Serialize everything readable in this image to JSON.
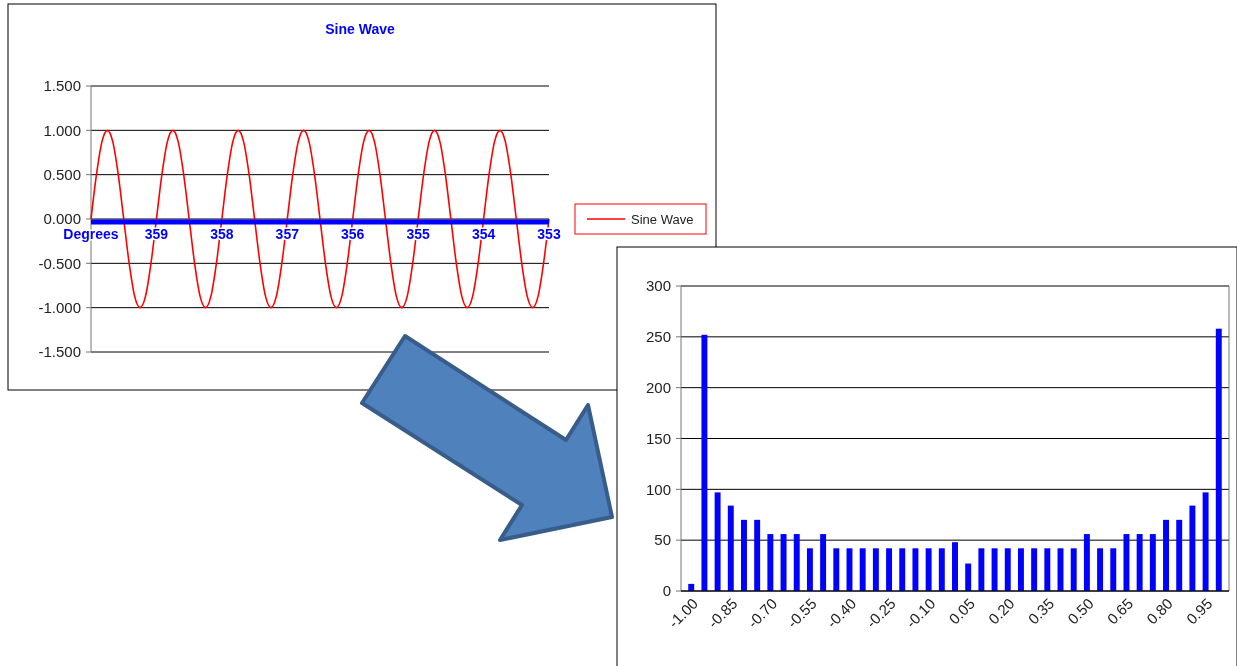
{
  "chart_data": [
    {
      "type": "line",
      "title": "Sine Wave",
      "categories": [
        "Degrees",
        null,
        null,
        null,
        null,
        null,
        null,
        null,
        null,
        null,
        null,
        null,
        "359",
        null,
        null,
        null,
        null,
        null,
        null,
        null,
        null,
        null,
        null,
        null,
        "358",
        null,
        null,
        null,
        null,
        null,
        null,
        null,
        null,
        null,
        null,
        null,
        "357",
        null,
        null,
        null,
        null,
        null,
        null,
        null,
        null,
        null,
        null,
        null,
        "356",
        null,
        null,
        null,
        null,
        null,
        null,
        null,
        null,
        null,
        null,
        null,
        "355",
        null,
        null,
        null,
        null,
        null,
        null,
        null,
        null,
        null,
        null,
        null,
        "354",
        null,
        null,
        null,
        null,
        null,
        null,
        null,
        null,
        null,
        null,
        null,
        "353"
      ],
      "series": [
        {
          "name": "Sine Wave",
          "color": "#ff0000",
          "values": [
            0,
            0.5,
            0.87,
            1,
            0.87,
            0.5,
            0,
            -0.5,
            -0.87,
            -1,
            -0.87,
            -0.5,
            0,
            0.5,
            0.87,
            1,
            0.87,
            0.5,
            0,
            -0.5,
            -0.87,
            -1,
            -0.87,
            -0.5,
            0,
            0.5,
            0.87,
            1,
            0.87,
            0.5,
            0,
            -0.5,
            -0.87,
            -1,
            -0.87,
            -0.5,
            0,
            0.5,
            0.87,
            1,
            0.87,
            0.5,
            0,
            -0.5,
            -0.87,
            -1,
            -0.87,
            -0.5,
            0,
            0.5,
            0.87,
            1,
            0.87,
            0.5,
            0,
            -0.5,
            -0.87,
            -1,
            -0.87,
            -0.5,
            0,
            0.5,
            0.87,
            1,
            0.87,
            0.5,
            0,
            -0.5,
            -0.87,
            -1,
            -0.87,
            -0.5,
            0,
            0.5,
            0.87,
            1,
            0.87,
            0.5,
            0,
            -0.5,
            -0.87,
            -1,
            -0.87,
            -0.5,
            0
          ]
        }
      ],
      "ylim": [
        -1.5,
        1.5
      ],
      "yticks": [
        {
          "value": -1.5,
          "label": "-1.500"
        },
        {
          "value": -1,
          "label": "-1.000"
        },
        {
          "value": -0.5,
          "label": "-0.500"
        },
        {
          "value": 0,
          "label": "0.000"
        },
        {
          "value": 0.5,
          "label": "0.500"
        },
        {
          "value": 1,
          "label": "1.000"
        },
        {
          "value": 1.5,
          "label": "1.500"
        }
      ],
      "grid": "y",
      "legend": "right"
    },
    {
      "type": "bar",
      "categories": [
        "-1.00",
        null,
        null,
        "-0.85",
        null,
        null,
        "-0.70",
        null,
        null,
        "-0.55",
        null,
        null,
        "-0.40",
        null,
        null,
        "-0.25",
        null,
        null,
        "-0.10",
        null,
        null,
        "0.05",
        null,
        null,
        "0.20",
        null,
        null,
        "0.35",
        null,
        null,
        "0.50",
        null,
        null,
        "0.65",
        null,
        null,
        "0.80",
        null,
        null,
        "0.95",
        null
      ],
      "series": [
        {
          "color": "#0000ff",
          "values": [
            7,
            252,
            97,
            84,
            70,
            70,
            56,
            56,
            56,
            42,
            56,
            42,
            42,
            42,
            42,
            42,
            42,
            42,
            42,
            42,
            48,
            27,
            42,
            42,
            42,
            42,
            42,
            42,
            42,
            42,
            56,
            42,
            42,
            56,
            56,
            56,
            70,
            70,
            84,
            97,
            258
          ]
        }
      ],
      "ylim": [
        0,
        300
      ],
      "yticks": [
        0,
        50,
        100,
        150,
        200,
        250,
        300
      ],
      "grid": "y"
    }
  ]
}
